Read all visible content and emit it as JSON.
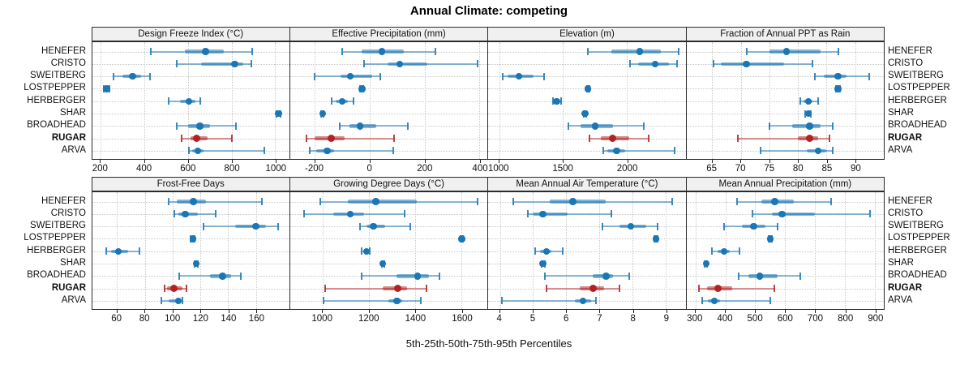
{
  "title": "Annual Climate: competing",
  "xlabel": "5th-25th-50th-75th-95th Percentiles",
  "sites": [
    "HENEFER",
    "CRISTO",
    "SWEITBERG",
    "LOSTPEPPER",
    "HERBERGER",
    "SHAR",
    "BROADHEAD",
    "RUGAR",
    "ARVA"
  ],
  "highlight_site": "RUGAR",
  "percentile_labels": [
    "5th",
    "25th",
    "50th",
    "75th",
    "95th"
  ],
  "colors": {
    "series": "#1A76B5",
    "highlight": "#B22222",
    "grid": "#C9C9C9",
    "strip_bg": "#F0F0F0",
    "panel_border": "#2B2B2B",
    "background": "#FFFFFF"
  },
  "chart_data": {
    "type": "dotplot-percentiles",
    "layout_hint": "2 rows x 4 columns trellis, grid dotted, site labels on both left and right sides",
    "panels": [
      {
        "row": 0,
        "col": 0,
        "title": "Design Freeze Index (°C)",
        "xlim": [
          160,
          1065
        ],
        "ticks": [
          200,
          400,
          600,
          800,
          1000
        ],
        "values": [
          [
            430,
            585,
            680,
            765,
            895
          ],
          [
            550,
            660,
            815,
            855,
            890
          ],
          [
            260,
            300,
            345,
            385,
            425
          ],
          [
            215,
            222,
            227,
            232,
            240
          ],
          [
            510,
            565,
            605,
            635,
            655
          ],
          [
            1005,
            1010,
            1015,
            1020,
            1025
          ],
          [
            550,
            600,
            655,
            700,
            820
          ],
          [
            570,
            610,
            640,
            690,
            800
          ],
          [
            605,
            620,
            645,
            670,
            950
          ]
        ]
      },
      {
        "row": 0,
        "col": 1,
        "title": "Effective Precipitation (mm)",
        "xlim": [
          -290,
          430
        ],
        "ticks": [
          -200,
          0,
          200,
          400
        ],
        "values": [
          [
            -100,
            -30,
            45,
            125,
            240
          ],
          [
            -20,
            65,
            110,
            210,
            395
          ],
          [
            -200,
            -105,
            -70,
            10,
            40
          ],
          [
            -35,
            -31,
            -28,
            -25,
            -22
          ],
          [
            -140,
            -125,
            -100,
            -80,
            -60
          ],
          [
            -176,
            -174,
            -172,
            -170,
            -168
          ],
          [
            -110,
            -75,
            -35,
            25,
            140
          ],
          [
            -230,
            -200,
            -140,
            -90,
            90
          ],
          [
            -220,
            -195,
            -155,
            -130,
            85
          ]
        ]
      },
      {
        "row": 0,
        "col": 2,
        "title": "Elevation (m)",
        "xlim": [
          915,
          2460
        ],
        "ticks": [
          1000,
          1500,
          2000
        ],
        "values": [
          [
            1695,
            1880,
            2100,
            2265,
            2405
          ],
          [
            2025,
            2090,
            2220,
            2330,
            2390
          ],
          [
            1030,
            1065,
            1155,
            1270,
            1350
          ],
          [
            1685,
            1690,
            1695,
            1700,
            1705
          ],
          [
            1420,
            1440,
            1450,
            1465,
            1485
          ],
          [
            1665,
            1668,
            1672,
            1676,
            1680
          ],
          [
            1545,
            1635,
            1750,
            1890,
            2130
          ],
          [
            1705,
            1795,
            1885,
            2015,
            2170
          ],
          [
            1815,
            1845,
            1920,
            1985,
            2375
          ]
        ]
      },
      {
        "row": 0,
        "col": 3,
        "title": "Fraction of Annual PPT as Rain",
        "xlim": [
          60.5,
          95
        ],
        "ticks": [
          65,
          70,
          75,
          80,
          85,
          90
        ],
        "values": [
          [
            71,
            75,
            78,
            84,
            87
          ],
          [
            65.3,
            66.5,
            71,
            77.5,
            82.5
          ],
          [
            83,
            84.5,
            87,
            88.5,
            92.5
          ],
          [
            86.6,
            86.8,
            87,
            87.2,
            87.4
          ],
          [
            80.4,
            81,
            81.8,
            82.5,
            83.5
          ],
          [
            81.3,
            81.5,
            81.8,
            82,
            82.3
          ],
          [
            75,
            79,
            82,
            84,
            86
          ],
          [
            69.5,
            80,
            82,
            83.5,
            85.5
          ],
          [
            73.5,
            81.5,
            83.5,
            85,
            86
          ]
        ]
      },
      {
        "row": 1,
        "col": 0,
        "title": "Frost-Free Days",
        "xlim": [
          42,
          184
        ],
        "ticks": [
          60,
          80,
          100,
          120,
          140,
          160
        ],
        "values": [
          [
            97,
            103,
            115,
            124,
            164
          ],
          [
            101,
            104,
            109,
            118,
            131
          ],
          [
            122,
            145,
            160,
            167,
            176
          ],
          [
            113,
            114,
            114.5,
            115,
            116
          ],
          [
            52,
            56,
            61,
            68,
            76
          ],
          [
            116,
            116.5,
            117,
            117.5,
            118
          ],
          [
            105,
            127,
            136,
            142,
            149
          ],
          [
            94,
            96,
            101,
            107,
            110
          ],
          [
            92,
            97,
            104,
            105.5,
            107
          ]
        ]
      },
      {
        "row": 1,
        "col": 1,
        "title": "Growing Degree Days (°C)",
        "xlim": [
          860,
          1712
        ],
        "ticks": [
          1000,
          1200,
          1400,
          1600
        ],
        "values": [
          [
            990,
            1110,
            1230,
            1405,
            1670
          ],
          [
            920,
            1045,
            1120,
            1180,
            1355
          ],
          [
            1160,
            1190,
            1220,
            1270,
            1380
          ],
          [
            1595,
            1598,
            1600,
            1602,
            1605
          ],
          [
            1170,
            1180,
            1190,
            1198,
            1205
          ],
          [
            1255,
            1257,
            1260,
            1262,
            1265
          ],
          [
            1170,
            1320,
            1410,
            1460,
            1505
          ],
          [
            1010,
            1260,
            1325,
            1365,
            1450
          ],
          [
            1005,
            1285,
            1320,
            1345,
            1425
          ]
        ]
      },
      {
        "row": 1,
        "col": 2,
        "title": "Mean Annual Air Temperature (°C)",
        "xlim": [
          3.65,
          9.6
        ],
        "ticks": [
          4,
          5,
          6,
          7,
          8,
          9
        ],
        "values": [
          [
            4.4,
            5.5,
            6.2,
            7.2,
            9.2
          ],
          [
            4.85,
            5.0,
            5.3,
            6.05,
            7.35
          ],
          [
            7.1,
            7.6,
            7.95,
            8.4,
            8.75
          ],
          [
            8.65,
            8.67,
            8.7,
            8.72,
            8.75
          ],
          [
            5.05,
            5.2,
            5.4,
            5.55,
            5.9
          ],
          [
            5.25,
            5.27,
            5.3,
            5.32,
            5.35
          ],
          [
            5.35,
            6.8,
            7.2,
            7.4,
            7.9
          ],
          [
            5.4,
            6.4,
            6.8,
            7.15,
            7.6
          ],
          [
            4.05,
            6.25,
            6.5,
            6.75,
            6.9
          ]
        ]
      },
      {
        "row": 1,
        "col": 3,
        "title": "Mean Annual Precipitation (mm)",
        "xlim": [
          270,
          930
        ],
        "ticks": [
          300,
          400,
          500,
          600,
          700,
          800,
          900
        ],
        "values": [
          [
            440,
            520,
            565,
            630,
            755
          ],
          [
            490,
            555,
            590,
            700,
            885
          ],
          [
            395,
            455,
            495,
            535,
            575
          ],
          [
            545,
            548,
            551,
            554,
            557
          ],
          [
            355,
            373,
            396,
            415,
            447
          ],
          [
            332,
            334,
            336,
            338,
            340
          ],
          [
            445,
            476,
            515,
            575,
            650
          ],
          [
            313,
            338,
            375,
            422,
            565
          ],
          [
            322,
            342,
            363,
            382,
            550
          ]
        ]
      }
    ]
  }
}
